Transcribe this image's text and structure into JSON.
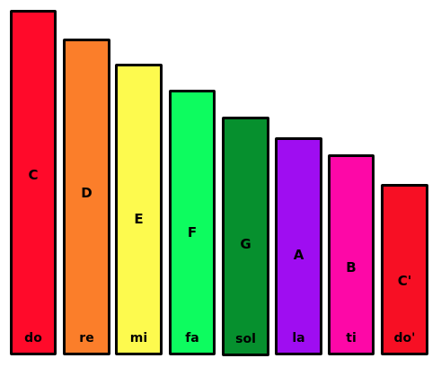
{
  "bars": [
    {
      "note": "C",
      "solfege": "do",
      "color": "#ff0a2a"
    },
    {
      "note": "D",
      "solfege": "re",
      "color": "#fb7e2a"
    },
    {
      "note": "E",
      "solfege": "mi",
      "color": "#fdfa4e"
    },
    {
      "note": "F",
      "solfege": "fa",
      "color": "#0dfc5f"
    },
    {
      "note": "G",
      "solfege": "sol",
      "color": "#06902e"
    },
    {
      "note": "A",
      "solfege": "la",
      "color": "#9f0df1"
    },
    {
      "note": "B",
      "solfege": "ti",
      "color": "#fd08a7"
    },
    {
      "note": "C'",
      "solfege": "do'",
      "color": "#f70f24"
    }
  ]
}
